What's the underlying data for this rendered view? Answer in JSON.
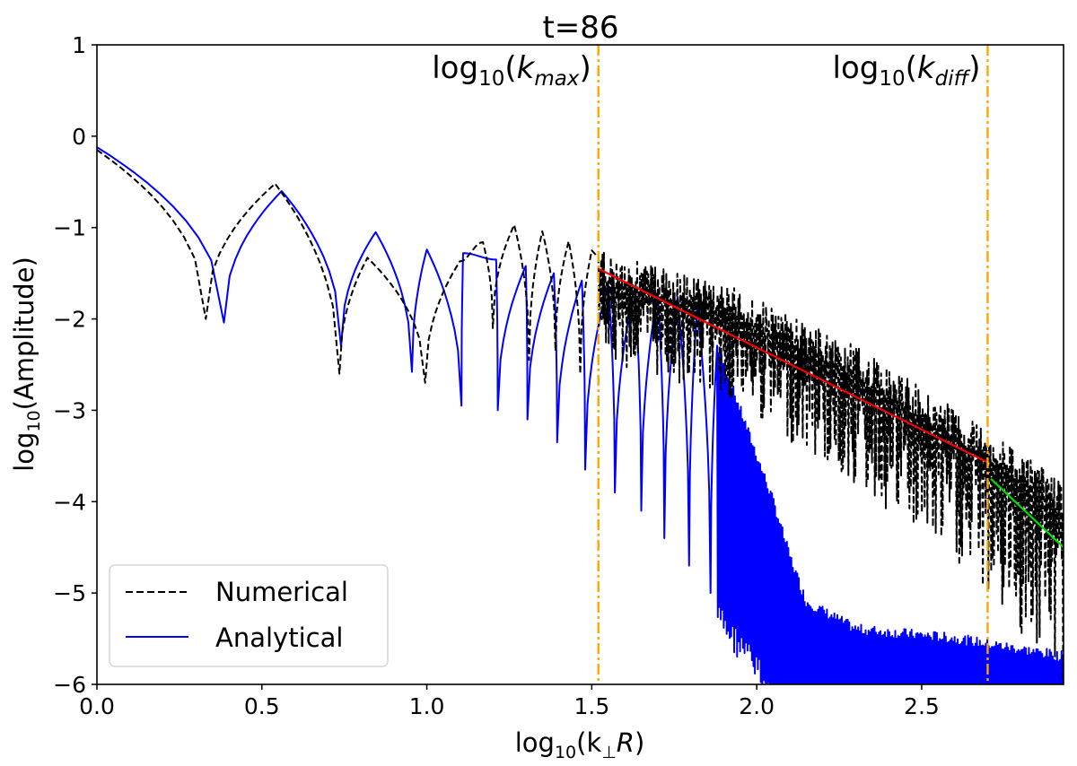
{
  "chart_data": {
    "type": "line",
    "title": "t=86",
    "xlabel": "log10(k⊥R)",
    "ylabel": "log10(Amplitude)",
    "xlim": [
      0.0,
      2.93
    ],
    "ylim": [
      -6,
      1
    ],
    "xticks": [
      0.0,
      0.5,
      1.0,
      1.5,
      2.0,
      2.5
    ],
    "xtick_labels": [
      "0.0",
      "0.5",
      "1.0",
      "1.5",
      "2.0",
      "2.5"
    ],
    "yticks": [
      1,
      0,
      -1,
      -2,
      -3,
      -4,
      -5,
      -6
    ],
    "ytick_labels": [
      "1",
      "0",
      "−1",
      "−2",
      "−3",
      "−4",
      "−5",
      "−6"
    ],
    "vertical_lines": [
      {
        "name": "kmax",
        "x": 1.52,
        "label": "log10(kmax)",
        "color": "#ffa500"
      },
      {
        "name": "kdiff",
        "x": 2.7,
        "label": "log10(kdiff)",
        "color": "#ffa500"
      }
    ],
    "series": [
      {
        "name": "Numerical",
        "style": "dashed",
        "color": "#000000",
        "minima": [
          [
            0.33,
            -2.0
          ],
          [
            0.735,
            -2.6
          ],
          [
            0.995,
            -2.7
          ],
          [
            1.2,
            -2.1
          ],
          [
            1.31,
            -2.45
          ],
          [
            1.39,
            -2.35
          ],
          [
            1.465,
            -2.6
          ]
        ],
        "maxima": [
          [
            0.0,
            -0.15
          ],
          [
            0.54,
            -0.52
          ],
          [
            0.82,
            -1.33
          ],
          [
            1.1,
            -1.37
          ],
          [
            1.17,
            -1.16
          ],
          [
            1.265,
            -0.97
          ],
          [
            1.35,
            -1.04
          ],
          [
            1.43,
            -1.15
          ],
          [
            1.5,
            -1.25
          ]
        ],
        "noise_envelope": [
          [
            1.52,
            -1.25
          ],
          [
            1.9,
            -1.6
          ],
          [
            2.3,
            -2.3
          ],
          [
            2.7,
            -3.2
          ],
          [
            2.93,
            -3.8
          ]
        ],
        "noise_floor": [
          [
            1.52,
            -2.2
          ],
          [
            1.9,
            -2.6
          ],
          [
            2.3,
            -3.6
          ],
          [
            2.7,
            -4.8
          ],
          [
            2.93,
            -5.8
          ]
        ]
      },
      {
        "name": "Analytical",
        "style": "solid",
        "color": "#0000ff",
        "minima": [
          [
            0.385,
            -2.04
          ],
          [
            0.74,
            -2.3
          ],
          [
            0.955,
            -2.58
          ],
          [
            1.105,
            -2.95
          ],
          [
            1.215,
            -3.0
          ],
          [
            1.305,
            -3.1
          ],
          [
            1.395,
            -3.35
          ],
          [
            1.48,
            -3.65
          ],
          [
            1.57,
            -3.9
          ],
          [
            1.65,
            -4.1
          ],
          [
            1.72,
            -4.4
          ],
          [
            1.795,
            -4.7
          ],
          [
            1.86,
            -5.0
          ],
          [
            1.925,
            -5.3
          ],
          [
            1.99,
            -5.6
          ],
          [
            2.05,
            -6.0
          ]
        ],
        "maxima": [
          [
            0.0,
            -0.12
          ],
          [
            0.56,
            -0.6
          ],
          [
            0.845,
            -1.05
          ],
          [
            1.0,
            -1.24
          ],
          [
            1.11,
            -1.28
          ],
          [
            1.21,
            -1.35
          ],
          [
            1.3,
            -1.42
          ],
          [
            1.385,
            -1.5
          ],
          [
            1.47,
            -1.58
          ],
          [
            1.55,
            -1.62
          ],
          [
            1.63,
            -1.65
          ],
          [
            1.7,
            -1.7
          ],
          [
            1.76,
            -1.76
          ],
          [
            1.82,
            -1.86
          ],
          [
            1.88,
            -2.3
          ],
          [
            1.95,
            -3.0
          ],
          [
            2.0,
            -3.5
          ],
          [
            2.05,
            -4.0
          ],
          [
            2.1,
            -4.6
          ],
          [
            2.15,
            -5.1
          ],
          [
            2.3,
            -5.4
          ],
          [
            2.6,
            -5.5
          ],
          [
            2.93,
            -5.7
          ]
        ]
      },
      {
        "name": "Fit below kdiff",
        "style": "solid",
        "color": "#ff0000",
        "points": [
          [
            1.52,
            -1.45
          ],
          [
            2.7,
            -3.57
          ]
        ]
      },
      {
        "name": "Fit above kdiff",
        "style": "solid",
        "color": "#00e000",
        "points": [
          [
            2.71,
            -3.75
          ],
          [
            2.93,
            -4.5
          ]
        ]
      }
    ],
    "legend": {
      "position": "bottom-left",
      "entries": [
        {
          "label": "Numerical",
          "style": "dashed",
          "color": "#000000"
        },
        {
          "label": "Analytical",
          "style": "solid",
          "color": "#0000ff"
        }
      ]
    }
  }
}
